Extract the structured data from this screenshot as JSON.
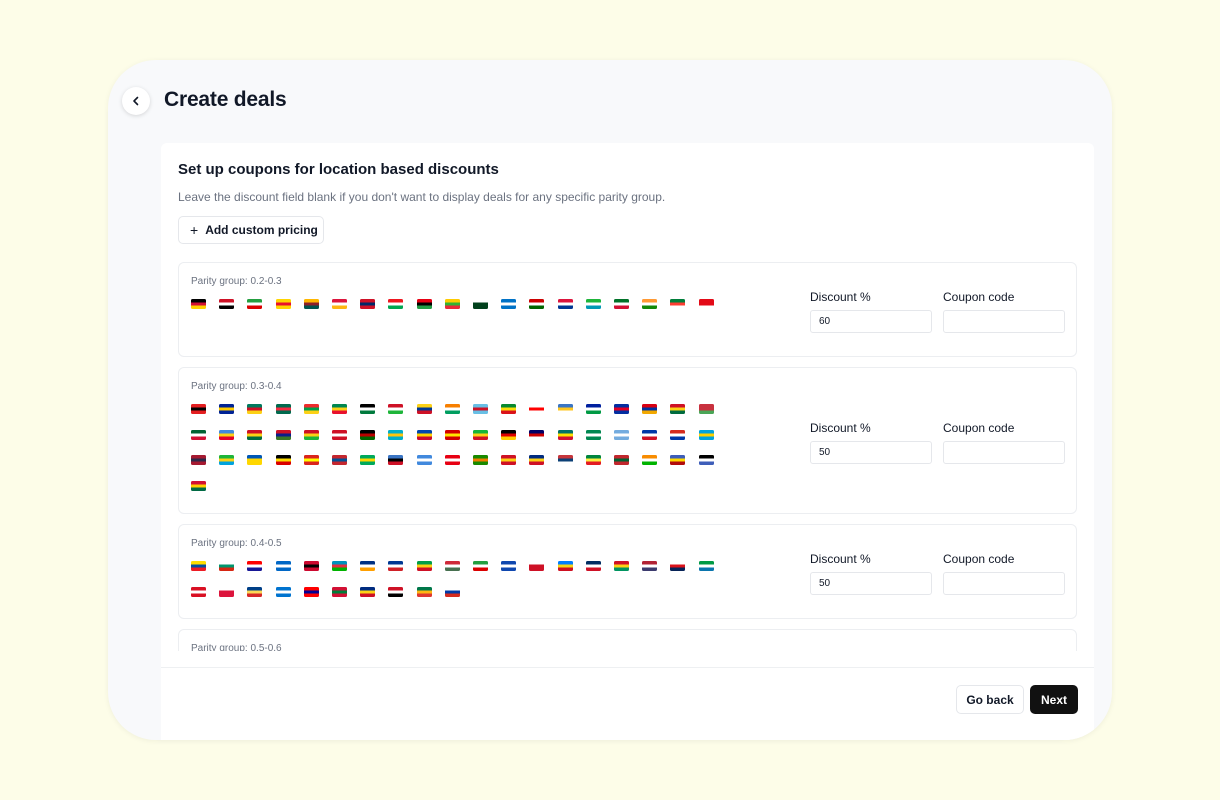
{
  "header": {
    "title": "Create deals",
    "back_icon": "chevron-left-icon"
  },
  "card": {
    "title": "Set up coupons for location based discounts",
    "subtitle": "Leave the discount field blank if you don't want to display deals for any specific parity group.",
    "add_button_label": "Add custom pricing"
  },
  "groups": [
    {
      "label": "Parity group: 0.2-0.3",
      "discount_label": "Discount %",
      "discount_value": "60",
      "coupon_label": "Coupon code",
      "coupon_value": "",
      "flags": [
        [
          "#000000",
          "#d21034",
          "#ffd100"
        ],
        [
          "#ce1126",
          "#ffffff",
          "#000000"
        ],
        [
          "#239f40",
          "#ffffff",
          "#da0000"
        ],
        [
          "#ffd500",
          "#e8112d",
          "#ffd500"
        ],
        [
          "#ffb700",
          "#8d2029",
          "#00534e"
        ],
        [
          "#dc143c",
          "#ffffff",
          "#ffb612"
        ],
        [
          "#ce1126",
          "#002868",
          "#ce1126"
        ],
        [
          "#ee161f",
          "#ffffff",
          "#00a651"
        ],
        [
          "#e70013",
          "#000000",
          "#239e46"
        ],
        [
          "#fecb00",
          "#34b233",
          "#ea2839"
        ],
        [
          "#ffffff",
          "#01411c",
          "#01411c"
        ],
        [
          "#0072c6",
          "#ffffff",
          "#0072c6"
        ],
        [
          "#cc0000",
          "#ffffff",
          "#006600"
        ],
        [
          "#dc143c",
          "#ffffff",
          "#003893"
        ],
        [
          "#1eb53a",
          "#ffffff",
          "#0099b5"
        ],
        [
          "#007229",
          "#ffffff",
          "#d21034"
        ],
        [
          "#ff9933",
          "#ffffff",
          "#138808"
        ],
        [
          "#007e3a",
          "#fc3d32",
          "#ffffff"
        ],
        [
          "#e30a17",
          "#e30a17",
          "#ffffff"
        ]
      ]
    },
    {
      "label": "Parity group: 0.3-0.4",
      "discount_label": "Discount %",
      "discount_value": "50",
      "coupon_label": "Coupon code",
      "coupon_value": "",
      "flags": [
        [
          "#e41e20",
          "#000000",
          "#e41e20"
        ],
        [
          "#002395",
          "#fecb00",
          "#002395"
        ],
        [
          "#007a5e",
          "#ce1126",
          "#fcd116"
        ],
        [
          "#006a4e",
          "#f42a41",
          "#006a4e"
        ],
        [
          "#ef2b2d",
          "#009e49",
          "#fcd116"
        ],
        [
          "#008751",
          "#fcd116",
          "#e8112d"
        ],
        [
          "#000000",
          "#ffffff",
          "#007a3d"
        ],
        [
          "#ce1126",
          "#ffffff",
          "#1eb53a"
        ],
        [
          "#fcd116",
          "#003893",
          "#ce1126"
        ],
        [
          "#f77f00",
          "#ffffff",
          "#009e60"
        ],
        [
          "#68bfe5",
          "#ce1126",
          "#68bfe5"
        ],
        [
          "#078930",
          "#fcdd09",
          "#da121a"
        ],
        [
          "#ffffff",
          "#ff0000",
          "#ffffff"
        ],
        [
          "#3a75c4",
          "#ffc61e",
          "#ffffff"
        ],
        [
          "#00209f",
          "#ffffff",
          "#009a44"
        ],
        [
          "#032ea1",
          "#e00025",
          "#032ea1"
        ],
        [
          "#d90012",
          "#0033a0",
          "#f2a800"
        ],
        [
          "#ce1126",
          "#fcd116",
          "#006b3f"
        ],
        [
          "#c8313e",
          "#c8313e",
          "#4aa657"
        ],
        [
          "#006233",
          "#ffffff",
          "#d21034"
        ],
        [
          "#4189dd",
          "#fcd116",
          "#e4002b"
        ],
        [
          "#ce1126",
          "#fcd116",
          "#006b3f"
        ],
        [
          "#ce1126",
          "#0c1c8c",
          "#3a7728"
        ],
        [
          "#ce1126",
          "#fcd116",
          "#1eb53a"
        ],
        [
          "#ce1126",
          "#ffffff",
          "#ce1126"
        ],
        [
          "#000000",
          "#bb0000",
          "#006600"
        ],
        [
          "#00afca",
          "#fec50c",
          "#00afca"
        ],
        [
          "#0046ae",
          "#ffd200",
          "#cc092f"
        ],
        [
          "#d20000",
          "#ffe600",
          "#d20000"
        ],
        [
          "#14b53a",
          "#fcd116",
          "#ce1126"
        ],
        [
          "#000000",
          "#dd0000",
          "#ffce00"
        ],
        [
          "#010066",
          "#cc0001",
          "#ffffff"
        ],
        [
          "#007168",
          "#fce100",
          "#d21034"
        ],
        [
          "#008751",
          "#ffffff",
          "#008751"
        ],
        [
          "#74acdf",
          "#ffffff",
          "#74acdf"
        ],
        [
          "#0038a8",
          "#ffffff",
          "#ce1126"
        ],
        [
          "#d52b1e",
          "#ffffff",
          "#0038a8"
        ],
        [
          "#00a3dd",
          "#ffd100",
          "#00a3dd"
        ],
        [
          "#a51931",
          "#2d2a4a",
          "#a51931"
        ],
        [
          "#1eb53a",
          "#fcd116",
          "#00a3dd"
        ],
        [
          "#0057b7",
          "#ffd700",
          "#ffd700"
        ],
        [
          "#000000",
          "#fcdc04",
          "#d90000"
        ],
        [
          "#da251d",
          "#ffff00",
          "#da251d"
        ],
        [
          "#c4272f",
          "#015197",
          "#c4272f"
        ],
        [
          "#00a95c",
          "#ffd700",
          "#00a95c"
        ],
        [
          "#3a75c4",
          "#000000",
          "#ce1126"
        ],
        [
          "#4189dd",
          "#ffffff",
          "#4189dd"
        ],
        [
          "#e70013",
          "#ffffff",
          "#e70013"
        ],
        [
          "#198a00",
          "#ef7d00",
          "#198a00"
        ],
        [
          "#ce1126",
          "#fcd116",
          "#ce1126"
        ],
        [
          "#002b7f",
          "#fcd116",
          "#ce1126"
        ],
        [
          "#c6363c",
          "#0c4076",
          "#ffffff"
        ],
        [
          "#00853f",
          "#fdef42",
          "#e31b23"
        ],
        [
          "#c1272d",
          "#006233",
          "#c1272d"
        ],
        [
          "#f88c00",
          "#ffffff",
          "#00b300"
        ],
        [
          "#3e5eb9",
          "#ffd900",
          "#b10c0c"
        ],
        [
          "#000000",
          "#ffffff",
          "#3e5eb9"
        ],
        [
          "#d21034",
          "#ffce00",
          "#006a44"
        ]
      ]
    },
    {
      "label": "Parity group: 0.4-0.5",
      "discount_label": "Discount %",
      "discount_value": "50",
      "coupon_label": "Coupon code",
      "coupon_value": "",
      "flags": [
        [
          "#ffdd00",
          "#034ea2",
          "#ed1c24"
        ],
        [
          "#ffffff",
          "#00966e",
          "#d62612"
        ],
        [
          "#ff0000",
          "#ffffff",
          "#171796"
        ],
        [
          "#0067c6",
          "#ffffff",
          "#0067c6"
        ],
        [
          "#cc092f",
          "#000000",
          "#cc092f"
        ],
        [
          "#0092bc",
          "#e4303e",
          "#00b200"
        ],
        [
          "#003082",
          "#ffffff",
          "#ff9f00"
        ],
        [
          "#003893",
          "#ffffff",
          "#cf2027"
        ],
        [
          "#009e49",
          "#fcd116",
          "#ce1126"
        ],
        [
          "#ce2939",
          "#ffffff",
          "#477050"
        ],
        [
          "#239f40",
          "#ffffff",
          "#da0000"
        ],
        [
          "#0f47af",
          "#ffffff",
          "#0f47af"
        ],
        [
          "#ffffff",
          "#ce1126",
          "#ce1126"
        ],
        [
          "#007fff",
          "#f7d618",
          "#ce1021"
        ],
        [
          "#002d62",
          "#ffffff",
          "#ce1126"
        ],
        [
          "#ce1126",
          "#fcd116",
          "#009460"
        ],
        [
          "#b22234",
          "#ffffff",
          "#3c3b6e"
        ],
        [
          "#ffffff",
          "#da121a",
          "#072357"
        ],
        [
          "#009a44",
          "#ffffff",
          "#0a75ad"
        ],
        [
          "#d91023",
          "#ffffff",
          "#d91023"
        ],
        [
          "#ffffff",
          "#dc143c",
          "#dc143c"
        ],
        [
          "#003f87",
          "#fcd856",
          "#d62828"
        ],
        [
          "#0073cf",
          "#ffffff",
          "#0073cf"
        ],
        [
          "#fe0000",
          "#000095",
          "#fe0000"
        ],
        [
          "#d21034",
          "#007e3a",
          "#d21034"
        ],
        [
          "#002b7f",
          "#fcd116",
          "#ce1126"
        ],
        [
          "#ce1126",
          "#ffffff",
          "#000000"
        ],
        [
          "#007749",
          "#ffb612",
          "#de3831"
        ],
        [
          "#ffffff",
          "#0039a6",
          "#d52b1e"
        ]
      ]
    },
    {
      "label": "Parity group: 0.5-0.6",
      "flags": []
    }
  ],
  "footer": {
    "go_back_label": "Go back",
    "next_label": "Next"
  }
}
